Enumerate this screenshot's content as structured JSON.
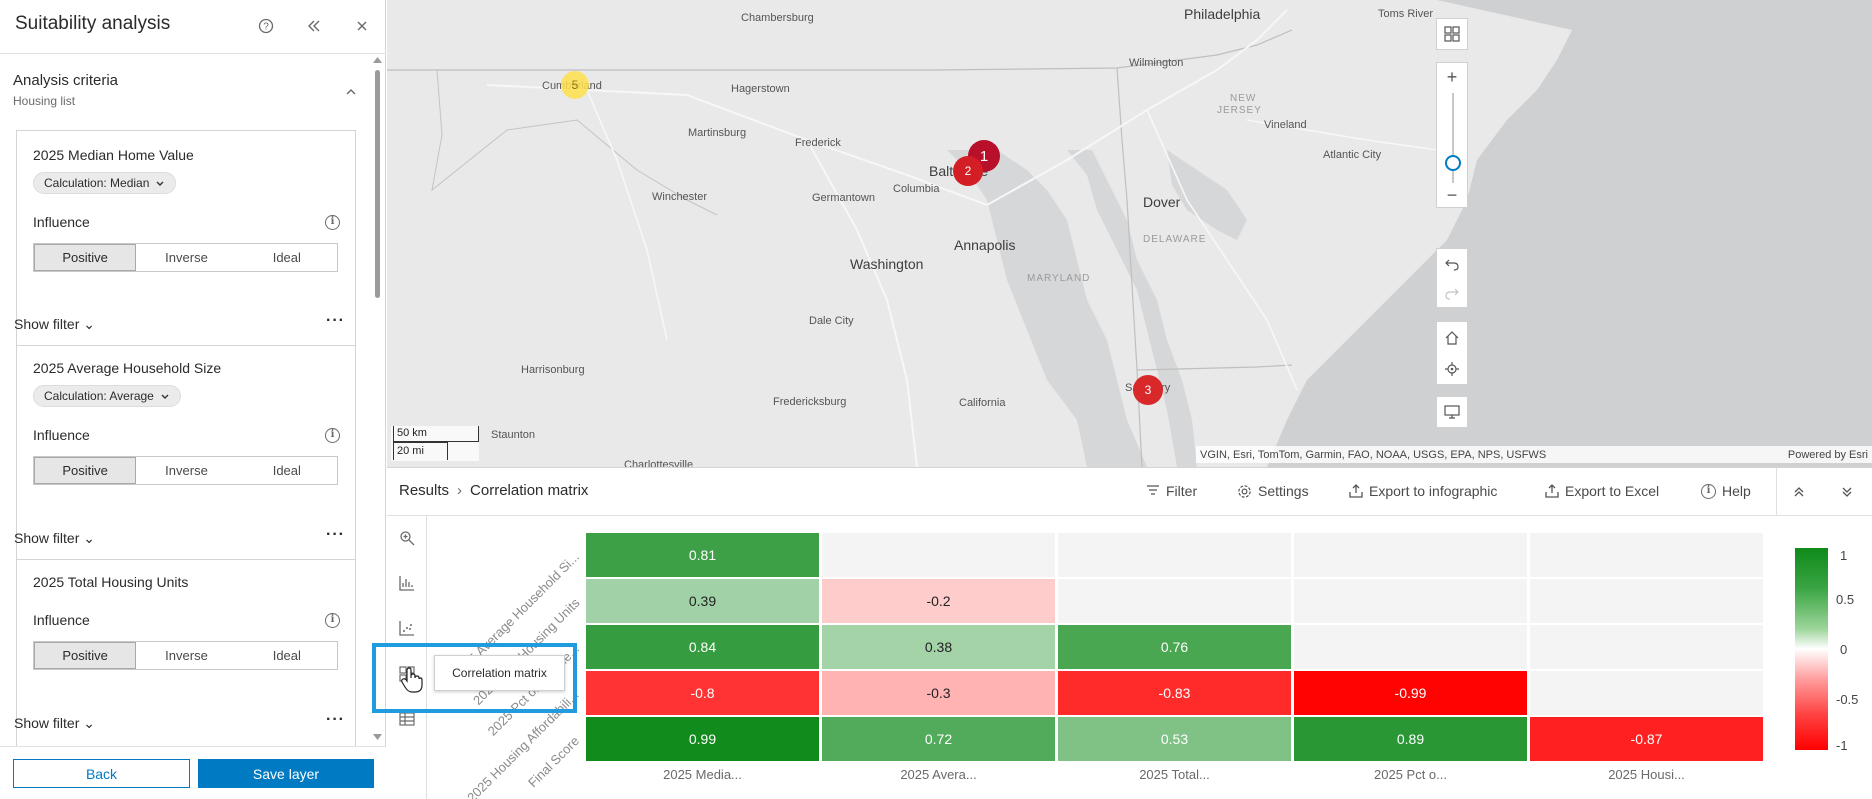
{
  "panel": {
    "title": "Suitability analysis",
    "criteria_title": "Analysis criteria",
    "criteria_subtitle": "Housing list",
    "cards": [
      {
        "title": "2025 Median Home Value",
        "calculation": "Calculation: Median",
        "influence_label": "Influence",
        "options": [
          "Positive",
          "Inverse",
          "Ideal"
        ],
        "selected": "Positive",
        "show_filter": "Show filter"
      },
      {
        "title": "2025 Average Household Size",
        "calculation": "Calculation: Average",
        "influence_label": "Influence",
        "options": [
          "Positive",
          "Inverse",
          "Ideal"
        ],
        "selected": "Positive",
        "show_filter": "Show filter"
      },
      {
        "title": "2025 Total Housing Units",
        "influence_label": "Influence",
        "options": [
          "Positive",
          "Inverse",
          "Ideal"
        ],
        "selected": "Positive",
        "show_filter": "Show filter"
      }
    ],
    "back_label": "Back",
    "save_label": "Save layer"
  },
  "map": {
    "places": [
      "Chambersburg",
      "Philadelphia",
      "Toms River",
      "Cumberland",
      "Hagerstown",
      "Wilmington",
      "Martinsburg",
      "Frederick",
      "Baltimore",
      "Vineland",
      "Winchester",
      "Germantown",
      "Columbia",
      "Atlantic City",
      "Dover",
      "Washington",
      "Annapolis",
      "Dale City",
      "Harrisonburg",
      "Fredericksburg",
      "California",
      "Salisbury",
      "Staunton",
      "Charlottesville"
    ],
    "states": [
      "NEW",
      "JERSEY",
      "DELAWARE",
      "MARYLAND"
    ],
    "markers": [
      "5",
      "1",
      "2",
      "3"
    ],
    "scale_km": "50 km",
    "scale_mi": "20 mi",
    "attribution": "VGIN, Esri, TomTom, Garmin, FAO, NOAA, USGS, EPA, NPS, USFWS",
    "powered_by": "Powered by Esri",
    "zoom_in": "+",
    "zoom_out": "−",
    "zoom_level": 0.29
  },
  "results": {
    "breadcrumb_root": "Results",
    "breadcrumb_sep": "›",
    "breadcrumb_current": "Correlation matrix",
    "toolbar": [
      "Filter",
      "Settings",
      "Export to infographic",
      "Export to Excel",
      "Help"
    ],
    "tooltip": "Correlation matrix"
  },
  "colors": {
    "accent": "#007ac2",
    "highlight": "#1f9be0",
    "marker_red": "#d21e24",
    "marker_yellow": "#ffe14d"
  },
  "chart_data": {
    "type": "heatmap",
    "x_labels": [
      "2025 Media...",
      "2025 Avera...",
      "2025 Total...",
      "2025 Pct o...",
      "2025 Housi..."
    ],
    "y_labels": [
      "2025 Average Household Si...",
      "2025 Total Housing Units",
      "2025 Pct of Income...",
      "2025 Housing Affordabili...",
      "Final Score"
    ],
    "values": [
      [
        0.81,
        null,
        null,
        null,
        null
      ],
      [
        0.39,
        -0.2,
        null,
        null,
        null
      ],
      [
        0.84,
        0.38,
        0.76,
        null,
        null
      ],
      [
        -0.8,
        -0.3,
        -0.83,
        -0.99,
        null
      ],
      [
        0.99,
        0.72,
        0.53,
        0.89,
        -0.87
      ]
    ],
    "legend_ticks": [
      "1",
      "0.5",
      "0",
      "-0.5",
      "-1"
    ],
    "color_positive": "#0f8a1a",
    "color_negative": "#ff0000"
  }
}
